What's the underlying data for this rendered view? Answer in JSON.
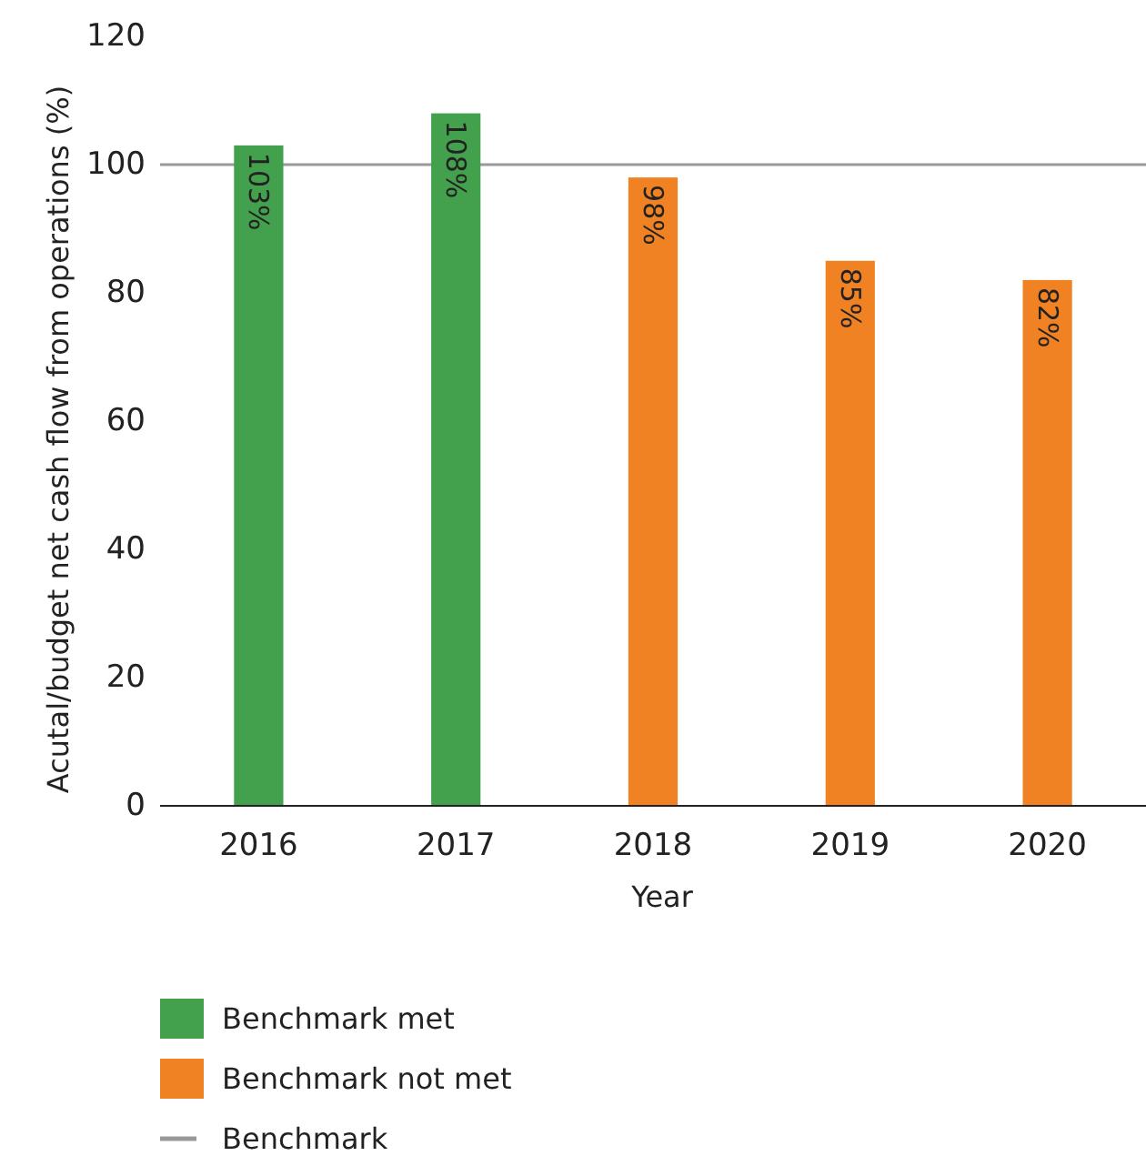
{
  "chart_data": {
    "type": "bar",
    "xlabel": "Year",
    "ylabel": "Acutal/budget net cash flow from operations (%)",
    "categories": [
      "2016",
      "2017",
      "2018",
      "2019",
      "2020"
    ],
    "series": [
      {
        "name": "Benchmark met",
        "color": "#43a04c",
        "values": [
          103,
          108,
          null,
          null,
          null
        ],
        "value_labels": [
          "103%",
          "108%",
          null,
          null,
          null
        ]
      },
      {
        "name": "Benchmark not met",
        "color": "#f08224",
        "values": [
          null,
          null,
          98,
          85,
          82
        ],
        "value_labels": [
          null,
          null,
          "98%",
          "85%",
          "82%"
        ]
      }
    ],
    "ylim": [
      0,
      120
    ],
    "yticks": [
      0,
      20,
      40,
      60,
      80,
      100,
      120
    ],
    "grid": false,
    "legend": "bottom",
    "ref_lines": [
      {
        "axis": "y",
        "value": 100,
        "label": "Benchmark",
        "color": "#999999"
      }
    ]
  }
}
